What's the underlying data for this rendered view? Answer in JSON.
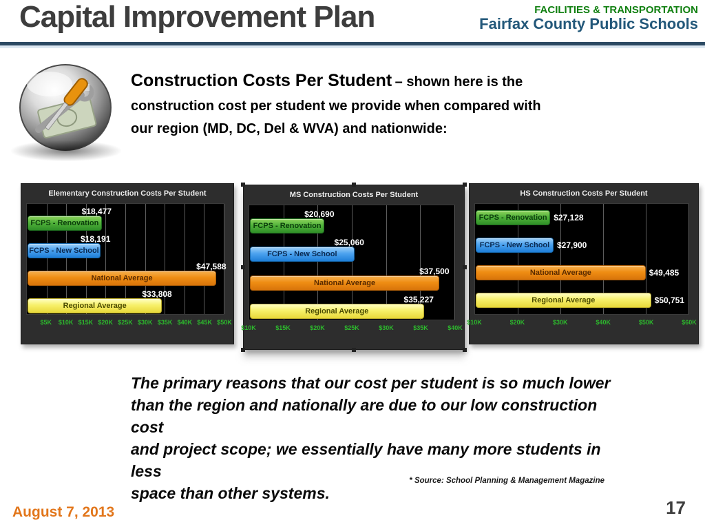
{
  "header": {
    "title": "Capital Improvement Plan",
    "department": "FACILITIES & TRANSPORTATION",
    "organization": "Fairfax County Public Schools"
  },
  "intro": {
    "icon": "tools-and-money-sphere-icon",
    "heading": "Construction Costs Per Student",
    "tagline_line1": "– shown here is the",
    "tagline_line2": "construction cost per student we provide when compared with",
    "tagline_line3": "our region (MD, DC, Del & WVA) and nationwide:"
  },
  "chart_data": [
    {
      "type": "bar",
      "orientation": "horizontal",
      "title": "Elementary Construction Costs Per Student",
      "categories": [
        "FCPS - Renovation",
        "FCPS - New School",
        "National Average",
        "Regional Average"
      ],
      "values": [
        18477,
        18191,
        47588,
        33808
      ],
      "value_labels": [
        "$18,477",
        "$18,191",
        "$47,588",
        "$33,808"
      ],
      "bar_colors": [
        "green",
        "blue",
        "orange",
        "yellow"
      ],
      "x_ticks": [
        "$5K",
        "$10K",
        "$15K",
        "$20K",
        "$25K",
        "$30K",
        "$35K",
        "$40K",
        "$45K",
        "$50K"
      ],
      "x_tick_values": [
        5000,
        10000,
        15000,
        20000,
        25000,
        30000,
        35000,
        40000,
        45000,
        50000
      ],
      "xlim": [
        0,
        50000
      ],
      "value_label_position": "above",
      "grid": true,
      "legend": "none",
      "selected": false
    },
    {
      "type": "bar",
      "orientation": "horizontal",
      "title": "MS Construction Costs Per Student",
      "categories": [
        "FCPS - Renovation",
        "FCPS - New School",
        "National Average",
        "Regional Average"
      ],
      "values": [
        20690,
        25060,
        37500,
        35227
      ],
      "value_labels": [
        "$20,690",
        "$25,060",
        "$37,500",
        "$35,227"
      ],
      "bar_colors": [
        "green",
        "blue",
        "orange",
        "yellow"
      ],
      "x_ticks": [
        "$10K",
        "$15K",
        "$20K",
        "$25K",
        "$30K",
        "$35K",
        "$40K"
      ],
      "x_tick_values": [
        10000,
        15000,
        20000,
        25000,
        30000,
        35000,
        40000
      ],
      "xlim": [
        10000,
        40000
      ],
      "value_label_position": "above",
      "grid": true,
      "legend": "none",
      "selected": true
    },
    {
      "type": "bar",
      "orientation": "horizontal",
      "title": "HS Construction Costs Per Student",
      "categories": [
        "FCPS - Renovation",
        "FCPS - New School",
        "National Average",
        "Regional Average"
      ],
      "values": [
        27128,
        27900,
        49485,
        50751
      ],
      "value_labels": [
        "$27,128",
        "$27,900",
        "$49,485",
        "$50,751"
      ],
      "bar_colors": [
        "green",
        "blue",
        "orange",
        "yellow"
      ],
      "x_ticks": [
        "$10K",
        "$20K",
        "$30K",
        "$40K",
        "$50K",
        "$60K"
      ],
      "x_tick_values": [
        10000,
        20000,
        30000,
        40000,
        50000,
        60000
      ],
      "xlim": [
        10000,
        60000
      ],
      "value_label_position": "right",
      "grid": true,
      "legend": "none",
      "selected": false
    }
  ],
  "commentary": {
    "lines": [
      "The primary reasons that our cost per student is so much lower",
      "than the region and nationally are due to our low construction cost",
      "and project scope; we essentially have many more students in less",
      "space than other systems."
    ]
  },
  "source_note": "* Source: School Planning & Management Magazine",
  "footer": {
    "date": "August 7, 2013",
    "page_number": "17"
  },
  "colors": {
    "header_title_gray": "#3d3d3d",
    "header_department_green": "#118011",
    "header_org_blue": "#23587a",
    "divider_navy": "#2c4a63",
    "panel_background": "#2d2d2d",
    "plot_background": "#000000",
    "gridline_gray": "#5c5c5c",
    "axis_tick_green": "#2db82d",
    "bar_green": "#52b33b",
    "bar_blue": "#4da3ef",
    "bar_orange": "#ef8d13",
    "bar_yellow": "#f7f06a",
    "value_label_white": "#ffffff",
    "date_orange": "#e2761b"
  }
}
